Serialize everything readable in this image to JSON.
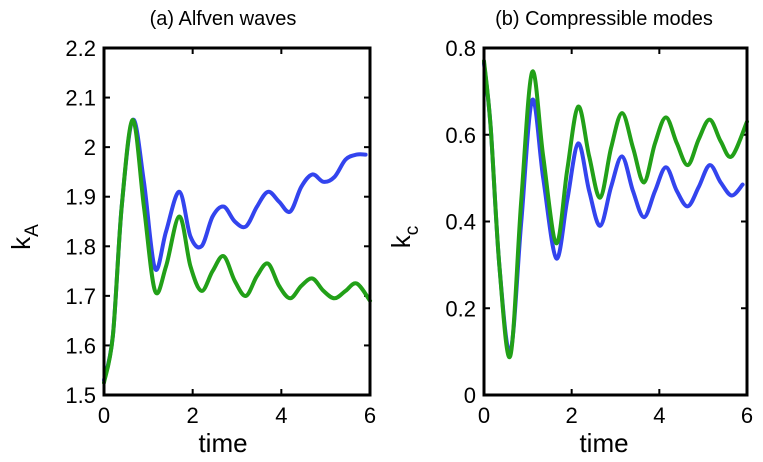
{
  "chart_data": [
    {
      "type": "line",
      "title": "(a) Alfven waves",
      "xlabel": "time",
      "ylabel": "k",
      "ylabel_sub": "A",
      "xlim": [
        0,
        6
      ],
      "ylim": [
        1.5,
        2.2
      ],
      "xticks": [
        0,
        2,
        4,
        6
      ],
      "xtick_labels": [
        "0",
        "2",
        "4",
        "6"
      ],
      "yticks": [
        1.5,
        1.6,
        1.7,
        1.8,
        1.9,
        2.0,
        2.1,
        2.2
      ],
      "ytick_labels": [
        "1.5",
        "1.6",
        "1.7",
        "1.8",
        "1.9",
        "2",
        "2.1",
        "2.2"
      ],
      "series": [
        {
          "name": "blue",
          "color": "#3344ee",
          "x": [
            0,
            0.2,
            0.4,
            0.65,
            0.9,
            1.15,
            1.4,
            1.7,
            1.95,
            2.2,
            2.45,
            2.7,
            2.95,
            3.2,
            3.45,
            3.7,
            3.95,
            4.2,
            4.45,
            4.7,
            4.95,
            5.2,
            5.45,
            5.7,
            5.9
          ],
          "y": [
            1.53,
            1.62,
            1.88,
            2.055,
            1.93,
            1.755,
            1.83,
            1.91,
            1.82,
            1.8,
            1.86,
            1.88,
            1.85,
            1.84,
            1.88,
            1.91,
            1.89,
            1.87,
            1.92,
            1.945,
            1.93,
            1.94,
            1.975,
            1.985,
            1.985
          ]
        },
        {
          "name": "green",
          "color": "#22a018",
          "x": [
            0,
            0.2,
            0.4,
            0.65,
            0.9,
            1.15,
            1.4,
            1.7,
            1.95,
            2.2,
            2.45,
            2.7,
            2.95,
            3.2,
            3.45,
            3.7,
            3.95,
            4.2,
            4.45,
            4.7,
            4.95,
            5.2,
            5.45,
            5.7,
            6.0
          ],
          "y": [
            1.525,
            1.62,
            1.88,
            2.055,
            1.88,
            1.71,
            1.76,
            1.86,
            1.76,
            1.71,
            1.75,
            1.78,
            1.73,
            1.7,
            1.74,
            1.765,
            1.72,
            1.695,
            1.72,
            1.735,
            1.71,
            1.695,
            1.71,
            1.725,
            1.69
          ]
        }
      ]
    },
    {
      "type": "line",
      "title": "(b) Compressible modes",
      "xlabel": "time",
      "ylabel": "k",
      "ylabel_sub": "c",
      "xlim": [
        0,
        6
      ],
      "ylim": [
        0,
        0.8
      ],
      "xticks": [
        0,
        2,
        4,
        6
      ],
      "xtick_labels": [
        "0",
        "2",
        "4",
        "6"
      ],
      "yticks": [
        0,
        0.2,
        0.4,
        0.6,
        0.8
      ],
      "ytick_labels": [
        "0",
        "0.2",
        "0.4",
        "0.6",
        "0.8"
      ],
      "series": [
        {
          "name": "blue",
          "color": "#3344ee",
          "x": [
            0,
            0.15,
            0.35,
            0.6,
            0.85,
            1.1,
            1.35,
            1.65,
            1.9,
            2.15,
            2.4,
            2.65,
            2.9,
            3.15,
            3.4,
            3.65,
            3.9,
            4.15,
            4.4,
            4.65,
            4.9,
            5.15,
            5.4,
            5.65,
            5.9
          ],
          "y": [
            0.765,
            0.62,
            0.3,
            0.1,
            0.4,
            0.68,
            0.5,
            0.315,
            0.45,
            0.58,
            0.47,
            0.39,
            0.48,
            0.55,
            0.47,
            0.41,
            0.47,
            0.525,
            0.47,
            0.435,
            0.48,
            0.53,
            0.49,
            0.46,
            0.485
          ]
        },
        {
          "name": "green",
          "color": "#22a018",
          "x": [
            0,
            0.15,
            0.35,
            0.6,
            0.85,
            1.1,
            1.35,
            1.65,
            1.9,
            2.15,
            2.4,
            2.65,
            2.9,
            3.15,
            3.4,
            3.65,
            3.9,
            4.15,
            4.4,
            4.65,
            4.9,
            5.15,
            5.4,
            5.65,
            6.0
          ],
          "y": [
            0.77,
            0.62,
            0.3,
            0.09,
            0.45,
            0.745,
            0.55,
            0.35,
            0.52,
            0.665,
            0.55,
            0.455,
            0.57,
            0.65,
            0.57,
            0.49,
            0.58,
            0.64,
            0.58,
            0.53,
            0.59,
            0.635,
            0.585,
            0.55,
            0.63
          ]
        }
      ]
    }
  ]
}
